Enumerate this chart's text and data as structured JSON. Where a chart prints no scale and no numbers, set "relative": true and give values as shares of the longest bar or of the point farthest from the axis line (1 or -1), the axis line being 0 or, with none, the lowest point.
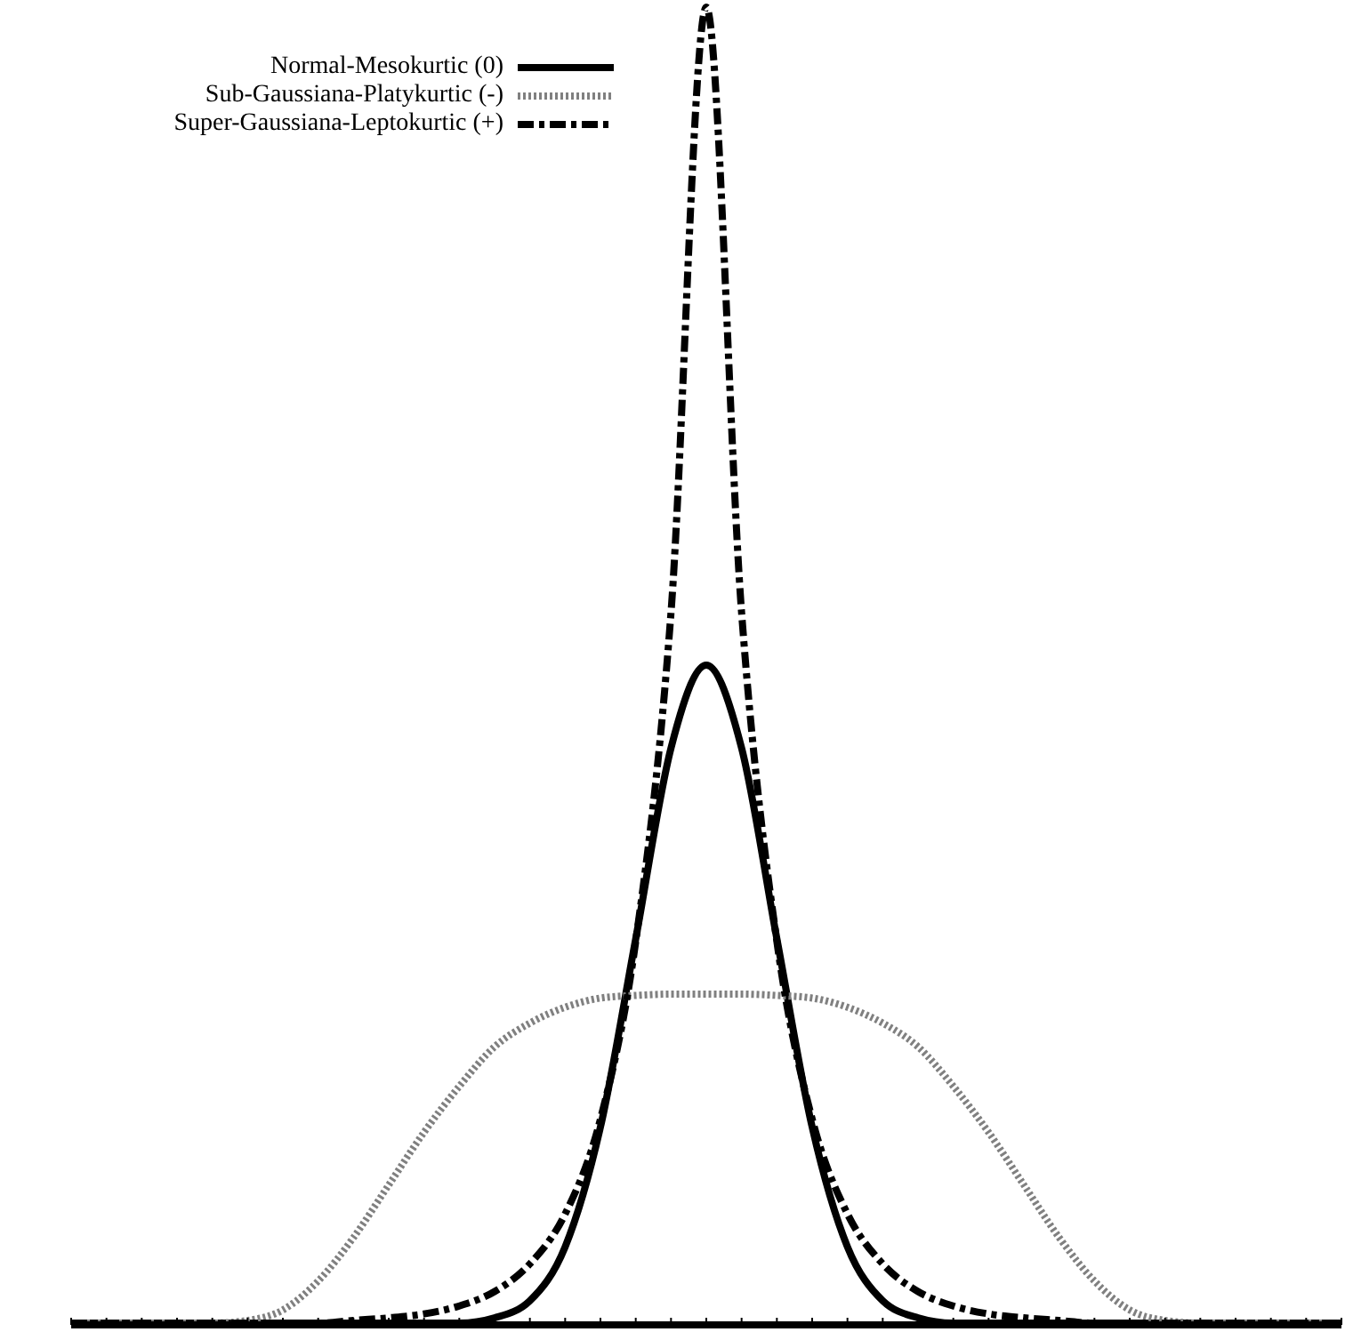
{
  "chart_data": {
    "type": "line",
    "relative": true,
    "legend": "top left",
    "categories": [
      null,
      null,
      null,
      null,
      null,
      null,
      null,
      null,
      null,
      null,
      null,
      null,
      null,
      null,
      null,
      null,
      null,
      null,
      null,
      null,
      null,
      null,
      null,
      null,
      null,
      null,
      null,
      null,
      null,
      null,
      null,
      null,
      null,
      null,
      null,
      null,
      null
    ],
    "series": [
      {
        "name": "Normal-Mesokurtic (0)",
        "color": "#000000",
        "line_style": "solid",
        "values": [
          0,
          0,
          0,
          0,
          0,
          0,
          0,
          0,
          0,
          0,
          0,
          0,
          0.004,
          0.017,
          0.058,
          0.149,
          0.292,
          0.437,
          0.5,
          0.437,
          0.292,
          0.149,
          0.058,
          0.017,
          0.004,
          0,
          0,
          0,
          0,
          0,
          0,
          0,
          0,
          0,
          0,
          0,
          0
        ]
      },
      {
        "name": "Sub-Gaussiana-Platykurtic (-)",
        "color": "#808080",
        "line_style": "dotted",
        "values": [
          0,
          0,
          0,
          0,
          0,
          0.002,
          0.01,
          0.032,
          0.065,
          0.105,
          0.145,
          0.18,
          0.21,
          0.228,
          0.24,
          0.247,
          0.249,
          0.25,
          0.25,
          0.25,
          0.249,
          0.247,
          0.24,
          0.228,
          0.21,
          0.18,
          0.145,
          0.105,
          0.065,
          0.032,
          0.01,
          0.002,
          0,
          0,
          0,
          0,
          0
        ]
      },
      {
        "name": "Super-Gaussiana-Leptokurtic (+)",
        "color": "#000000",
        "line_style": "dashed",
        "values": [
          0,
          0,
          0,
          0,
          0,
          0,
          0,
          0,
          0.002,
          0.004,
          0.007,
          0.013,
          0.024,
          0.045,
          0.083,
          0.155,
          0.29,
          0.54,
          1,
          0.54,
          0.29,
          0.155,
          0.083,
          0.045,
          0.024,
          0.013,
          0.007,
          0.004,
          0.002,
          0,
          0,
          0,
          0,
          0,
          0,
          0,
          0
        ]
      }
    ]
  }
}
